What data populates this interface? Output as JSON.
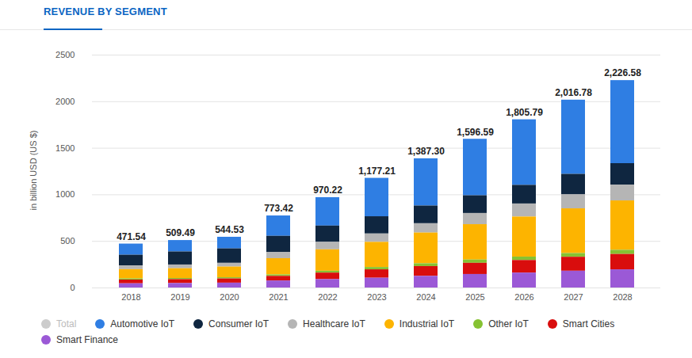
{
  "chart_data": {
    "type": "bar",
    "title": "REVENUE BY SEGMENT",
    "y_label": "in billion USD (US $)",
    "categories": [
      "2018",
      "2019",
      "2020",
      "2021",
      "2022",
      "2023",
      "2024",
      "2025",
      "2026",
      "2027",
      "2028"
    ],
    "stacked": true,
    "grid": true,
    "legend": "bottom-left",
    "data_labels": true,
    "ylim": [
      0,
      2500
    ],
    "yticks": [
      0,
      500,
      1000,
      1500,
      2000,
      2500
    ],
    "totals": {
      "name": "Total",
      "color": "#cccccc",
      "values": [
        471.54,
        509.49,
        544.53,
        773.42,
        970.22,
        1177.21,
        1387.3,
        1596.59,
        1805.79,
        2016.78,
        2226.58
      ],
      "value_labels": [
        "471.54",
        "509.49",
        "544.53",
        "773.42",
        "970.22",
        "1,177.21",
        "1,387.30",
        "1,596.59",
        "1,805.79",
        "2,016.78",
        "2,226.58"
      ]
    },
    "series": [
      {
        "name": "Automotive IoT",
        "color": "#2f7ee3",
        "values": [
          119.54,
          122.49,
          124.53,
          218.42,
          305.22,
          412.21,
          507.3,
          606.59,
          703.79,
          796.78,
          891.58
        ]
      },
      {
        "name": "Consumer IoT",
        "color": "#0f2640",
        "values": [
          115,
          140,
          155,
          175,
          175,
          185,
          190,
          190,
          200,
          220,
          230
        ]
      },
      {
        "name": "Healthcare IoT",
        "color": "#b5b5b5",
        "values": [
          40,
          40,
          40,
          65,
          80,
          90,
          100,
          120,
          140,
          150,
          170
        ]
      },
      {
        "name": "Industrial IoT",
        "color": "#fdb400",
        "values": [
          100,
          105,
          115,
          175,
          230,
          270,
          330,
          380,
          430,
          480,
          530
        ]
      },
      {
        "name": "Other IoT",
        "color": "#86c232",
        "values": [
          12,
          12,
          13,
          15,
          20,
          25,
          30,
          35,
          37,
          40,
          45
        ]
      },
      {
        "name": "Smart Cities",
        "color": "#d90d0d",
        "values": [
          40,
          42,
          45,
          50,
          70,
          90,
          105,
          120,
          135,
          150,
          165
        ]
      },
      {
        "name": "Smart Finance",
        "color": "#9b59d6",
        "values": [
          45,
          48,
          52,
          75,
          90,
          105,
          125,
          145,
          160,
          180,
          195
        ]
      }
    ]
  }
}
